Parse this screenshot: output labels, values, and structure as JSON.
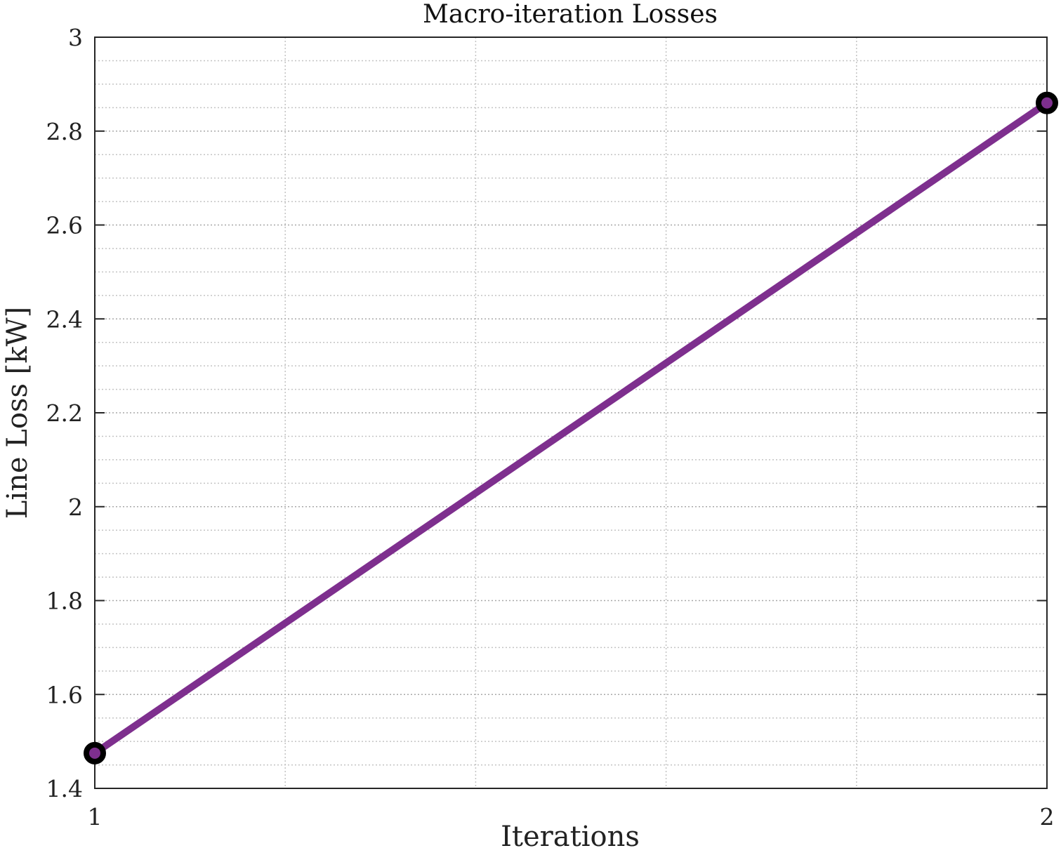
{
  "chart_data": {
    "type": "line",
    "title": "Macro-iteration Losses",
    "xlabel": "Iterations",
    "ylabel": "Line Loss [kW]",
    "x": [
      1,
      2
    ],
    "series": [
      {
        "values": [
          1.475,
          2.86
        ]
      }
    ],
    "xlim": [
      1,
      2
    ],
    "ylim": [
      1.4,
      3
    ],
    "xticks": [
      1,
      2
    ],
    "xtick_labels": [
      "1",
      "2"
    ],
    "yticks": [
      1.4,
      1.6,
      1.8,
      2,
      2.2,
      2.4,
      2.6,
      2.8,
      3
    ],
    "ytick_labels": [
      "1.4",
      "1.6",
      "1.8",
      "2",
      "2.2",
      "2.4",
      "2.6",
      "2.8",
      "3"
    ],
    "x_minor_grid_step": 0.2,
    "y_minor_grid_step": 0.05,
    "grid": true,
    "minor_grid": true,
    "line_color": "#7e2f8e",
    "marker_edge_color": "#000000"
  }
}
